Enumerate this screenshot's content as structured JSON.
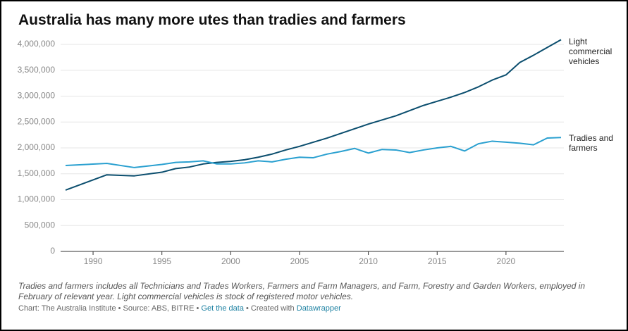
{
  "chart_data": {
    "type": "line",
    "title": "Australia has many more utes than tradies and farmers",
    "x": [
      1988,
      1991,
      1993,
      1995,
      1996,
      1997,
      1998,
      1999,
      2000,
      2001,
      2002,
      2003,
      2004,
      2005,
      2006,
      2007,
      2008,
      2009,
      2010,
      2011,
      2012,
      2013,
      2014,
      2015,
      2016,
      2017,
      2018,
      2019,
      2020,
      2021,
      2022,
      2023,
      2024
    ],
    "series": [
      {
        "name": "Light commercial vehicles",
        "color": "#0b4e6e",
        "values": [
          1185000,
          1480000,
          1460000,
          1530000,
          1600000,
          1630000,
          1690000,
          1720000,
          1740000,
          1770000,
          1820000,
          1880000,
          1960000,
          2030000,
          2110000,
          2190000,
          2280000,
          2370000,
          2460000,
          2540000,
          2620000,
          2720000,
          2820000,
          2900000,
          2980000,
          3070000,
          3180000,
          3310000,
          3410000,
          3650000,
          3790000,
          3940000,
          4090000
        ]
      },
      {
        "name": "Tradies and farmers",
        "color": "#2aa0d0",
        "values": [
          1660000,
          1700000,
          1620000,
          1680000,
          1720000,
          1730000,
          1750000,
          1690000,
          1690000,
          1710000,
          1750000,
          1730000,
          1780000,
          1820000,
          1810000,
          1880000,
          1930000,
          1990000,
          1900000,
          1970000,
          1960000,
          1910000,
          1960000,
          2000000,
          2030000,
          1940000,
          2080000,
          2130000,
          2110000,
          2090000,
          2060000,
          2190000,
          2200000
        ]
      }
    ],
    "xlim": [
      1988,
      2024
    ],
    "xticks": [
      1990,
      1995,
      2000,
      2005,
      2010,
      2015,
      2020
    ],
    "ylim": [
      0,
      4000000
    ],
    "yticks": [
      0,
      {
        "value": 500000,
        "label": "500,000"
      },
      {
        "value": 1000000,
        "label": "1,000,000"
      },
      {
        "value": 1500000,
        "label": "1,500,000"
      },
      {
        "value": 2000000,
        "label": "2,000,000"
      },
      {
        "value": 2500000,
        "label": "2,500,000"
      },
      {
        "value": 3000000,
        "label": "3,000,000"
      },
      {
        "value": 3500000,
        "label": "3,500,000"
      },
      {
        "value": 4000000,
        "label": "4,000,000"
      }
    ],
    "grid": true,
    "note": "Tradies and farmers includes all Technicians and Trades Workers, Farmers and Farm Managers, and Farm, Forestry and Garden Workers, employed in February of relevant year. Light commercial vehicles is stock of registered motor vehicles.",
    "source": "Chart: The Australia Institute • Source: ABS, BITRE •",
    "get_data": "Get the data",
    "created": "• Created with",
    "tool": "Datawrapper"
  }
}
